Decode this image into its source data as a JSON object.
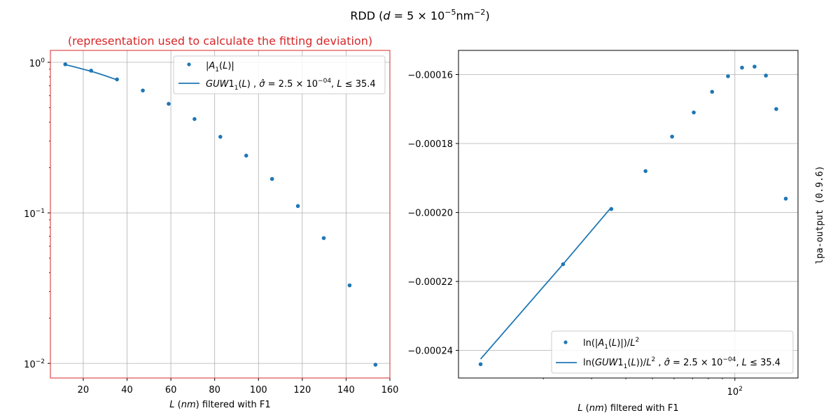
{
  "figure": {
    "suptitle": "RDD ($d = 5\\times10^{-5}$nm$^{-2}$)",
    "side_label": "lpa-output (0.9.6)"
  },
  "colors": {
    "series": "#1f77b4",
    "red_title": "#d62728",
    "grid": "#b0b0b0"
  },
  "chart_data": [
    {
      "type": "scatter",
      "title": "(representation used to calculate the fitting deviation)",
      "xlabel": "$L$ ($nm$) filtered with F1",
      "ylabel": "",
      "yscale": "log",
      "xlim": [
        5,
        160
      ],
      "ylim": [
        0.008,
        1.2
      ],
      "xticks": [
        20,
        40,
        60,
        80,
        100,
        120,
        140,
        160
      ],
      "yticks": [
        0.01,
        0.1,
        1
      ],
      "yticklabels": [
        "10^-2",
        "10^-1",
        "10^0"
      ],
      "grid": true,
      "legend": "top-right",
      "series": [
        {
          "name": "$|A_1(L)|$",
          "style": "markers",
          "x": [
            11.8,
            23.6,
            35.4,
            47.2,
            59.0,
            70.8,
            82.6,
            94.4,
            106.2,
            118.0,
            129.8,
            141.6,
            153.4
          ],
          "y": [
            0.97,
            0.88,
            0.77,
            0.65,
            0.53,
            0.42,
            0.32,
            0.24,
            0.168,
            0.111,
            0.068,
            0.033,
            0.0098
          ]
        },
        {
          "name": "$GUW1_1(L)$ , $\\hat{\\sigma} = 2.5\\times10^{-04}$, $L \\leq 35.4$",
          "style": "line",
          "x": [
            11.8,
            15,
            20,
            25,
            30,
            35.4
          ],
          "y": [
            0.965,
            0.94,
            0.9,
            0.86,
            0.815,
            0.765
          ]
        }
      ]
    },
    {
      "type": "scatter",
      "title": "",
      "xlabel": "$L$ ($nm$) filtered with F1",
      "ylabel": "",
      "xscale": "log",
      "xlim": [
        9.8,
        170
      ],
      "ylim": [
        -0.000248,
        -0.000153
      ],
      "xticks": [
        100
      ],
      "xticklabels": [
        "10^2"
      ],
      "yticks": [
        -0.00024,
        -0.00022,
        -0.0002,
        -0.00018,
        -0.00016
      ],
      "yticklabels": [
        "-0.00024",
        "-0.00022",
        "-0.00020",
        "-0.00018",
        "-0.00016"
      ],
      "grid": true,
      "legend": "lower-right",
      "series": [
        {
          "name": "$\\ln(|A_1(L)|)/L^2$",
          "style": "markers",
          "x": [
            11.8,
            23.6,
            35.4,
            47.2,
            59.0,
            70.8,
            82.6,
            94.4,
            106.2,
            118.0,
            129.8,
            141.6,
            153.4
          ],
          "y": [
            -0.000244,
            -0.000215,
            -0.000199,
            -0.000188,
            -0.000178,
            -0.000171,
            -0.000165,
            -0.0001605,
            -0.000158,
            -0.0001577,
            -0.0001603,
            -0.00017,
            -0.000196
          ]
        },
        {
          "name": "$\\ln(GUW1_1(L))/L^2$ , $\\hat{\\sigma} = 2.5\\times10^{-04}$, $L \\leq 35.4$",
          "style": "line",
          "x": [
            11.8,
            23.6,
            35.4
          ],
          "y": [
            -0.0002425,
            -0.000215,
            -0.0001985
          ]
        }
      ]
    }
  ]
}
